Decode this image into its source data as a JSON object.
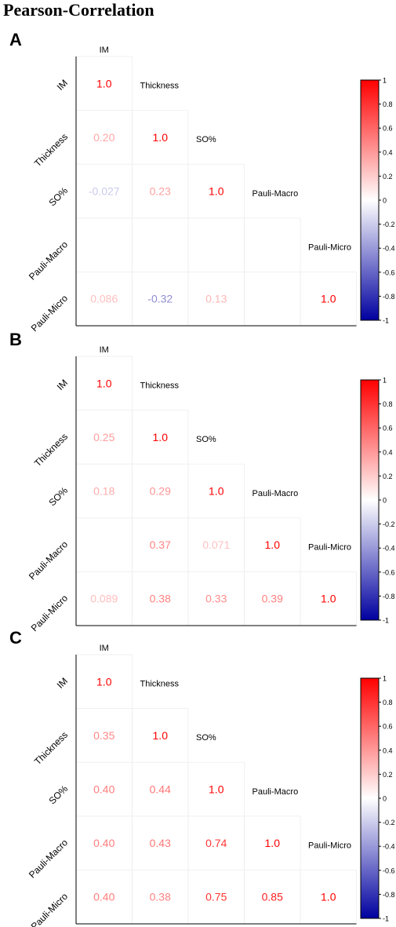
{
  "title": "Pearson-Correlation",
  "variables": [
    "IM",
    "Thickness",
    "SO%",
    "Pauli-Macro",
    "Pauli-Micro"
  ],
  "colorbar": {
    "ticks": [
      "1",
      "0.8",
      "0.6",
      "0.4",
      "0.2",
      "0",
      "-0.2",
      "-0.4",
      "-0.6",
      "-0.8",
      "-1"
    ],
    "colors": {
      "high": "#ff0000",
      "mid": "#ffffff",
      "low": "#0000a0"
    }
  },
  "chart_data": [
    {
      "type": "heatmap",
      "panel": "A",
      "variables": [
        "IM",
        "Thickness",
        "SO%",
        "Pauli-Macro",
        "Pauli-Micro"
      ],
      "labels": [
        [
          "1.0",
          null,
          null,
          null,
          null
        ],
        [
          "0.20",
          "1.0",
          null,
          null,
          null
        ],
        [
          "-0.027",
          "0.23",
          "1.0",
          null,
          null
        ],
        [
          null,
          null,
          null,
          null,
          null
        ],
        [
          "0.086",
          "-0.32",
          "0.13",
          null,
          "1.0"
        ]
      ],
      "values": [
        [
          1.0,
          null,
          null,
          null,
          null
        ],
        [
          0.2,
          1.0,
          null,
          null,
          null
        ],
        [
          -0.027,
          0.23,
          1.0,
          null,
          null
        ],
        [
          null,
          null,
          null,
          null,
          null
        ],
        [
          0.086,
          -0.32,
          0.13,
          null,
          1.0
        ]
      ],
      "zlim": [
        -1,
        1
      ]
    },
    {
      "type": "heatmap",
      "panel": "B",
      "variables": [
        "IM",
        "Thickness",
        "SO%",
        "Pauli-Macro",
        "Pauli-Micro"
      ],
      "labels": [
        [
          "1.0",
          null,
          null,
          null,
          null
        ],
        [
          "0.25",
          "1.0",
          null,
          null,
          null
        ],
        [
          "0.18",
          "0.29",
          "1.0",
          null,
          null
        ],
        [
          null,
          "0.37",
          "0.071",
          "1.0",
          null
        ],
        [
          "0.089",
          "0.38",
          "0.33",
          "0.39",
          "1.0"
        ]
      ],
      "values": [
        [
          1.0,
          null,
          null,
          null,
          null
        ],
        [
          0.25,
          1.0,
          null,
          null,
          null
        ],
        [
          0.18,
          0.29,
          1.0,
          null,
          null
        ],
        [
          null,
          0.37,
          0.071,
          1.0,
          null
        ],
        [
          0.089,
          0.38,
          0.33,
          0.39,
          1.0
        ]
      ],
      "zlim": [
        -1,
        1
      ]
    },
    {
      "type": "heatmap",
      "panel": "C",
      "variables": [
        "IM",
        "Thickness",
        "SO%",
        "Pauli-Macro",
        "Pauli-Micro"
      ],
      "labels": [
        [
          "1.0",
          null,
          null,
          null,
          null
        ],
        [
          "0.35",
          "1.0",
          null,
          null,
          null
        ],
        [
          "0.40",
          "0.44",
          "1.0",
          null,
          null
        ],
        [
          "0.40",
          "0.43",
          "0.74",
          "1.0",
          null
        ],
        [
          "0.40",
          "0.38",
          "0.75",
          "0.85",
          "1.0"
        ]
      ],
      "values": [
        [
          1.0,
          null,
          null,
          null,
          null
        ],
        [
          0.35,
          1.0,
          null,
          null,
          null
        ],
        [
          0.4,
          0.44,
          1.0,
          null,
          null
        ],
        [
          0.4,
          0.43,
          0.74,
          1.0,
          null
        ],
        [
          0.4,
          0.38,
          0.75,
          0.85,
          1.0
        ]
      ],
      "zlim": [
        -1,
        1
      ]
    }
  ]
}
